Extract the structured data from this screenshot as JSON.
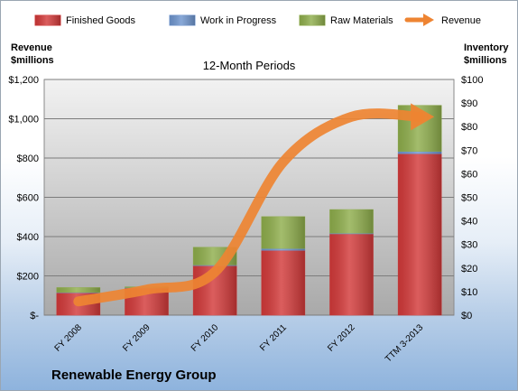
{
  "chart_data": {
    "type": "bar",
    "stacked": true,
    "subtitle": "12-Month Periods",
    "company": "Renewable Energy Group",
    "left_axis": {
      "label_line1": "Revenue",
      "label_line2": "$millions",
      "ylim": [
        0,
        1200
      ],
      "ticks": [
        "$-",
        "$200",
        "$400",
        "$600",
        "$800",
        "$1,000",
        "$1,200"
      ]
    },
    "right_axis": {
      "label_line1": "Inventory",
      "label_line2": "$millions",
      "ylim": [
        0,
        100
      ],
      "ticks": [
        "$0",
        "$10",
        "$20",
        "$30",
        "$40",
        "$50",
        "$60",
        "$70",
        "$80",
        "$90",
        "$100"
      ]
    },
    "categories": [
      "FY 2008",
      "FY 2009",
      "FY 2010",
      "FY 2011",
      "FY 2012",
      "TTM 3-2013"
    ],
    "series": [
      {
        "name": "Finished Goods",
        "axis": "right",
        "color": "#d33a3a",
        "values": [
          9.5,
          11.5,
          21,
          27.5,
          34.5,
          68.5
        ]
      },
      {
        "name": "Work in Progress",
        "axis": "right",
        "color": "#6f96cf",
        "values": [
          0.2,
          0.2,
          0.3,
          0.8,
          0.3,
          1
        ]
      },
      {
        "name": "Raw Materials",
        "axis": "right",
        "color": "#8fae4c",
        "values": [
          2,
          0.3,
          7.5,
          13.5,
          10,
          19.5
        ]
      },
      {
        "name": "Revenue",
        "axis": "left",
        "type": "line",
        "color": "#ee8432",
        "values": [
          70,
          130,
          220,
          780,
          1010,
          1010
        ]
      }
    ],
    "grid": true,
    "legend": "top"
  }
}
